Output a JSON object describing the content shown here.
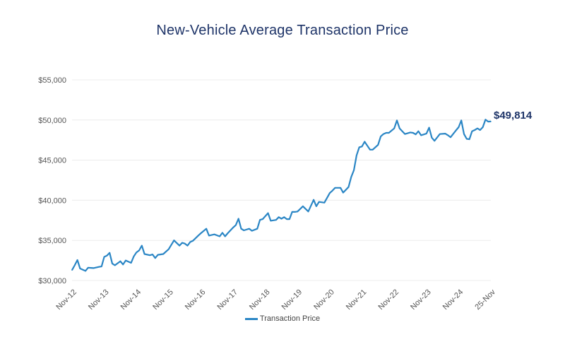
{
  "chart_data": {
    "type": "line",
    "title": "New-Vehicle Average Transaction Price",
    "xlabel": "",
    "ylabel": "",
    "ylim": [
      30000,
      55000
    ],
    "yticks": [
      "$30,000",
      "$35,000",
      "$40,000",
      "$45,000",
      "$50,000",
      "$55,000"
    ],
    "ytick_values": [
      30000,
      35000,
      40000,
      45000,
      50000,
      55000
    ],
    "xticks": [
      "Nov-12",
      "Nov-13",
      "Nov-14",
      "Nov-15",
      "Nov-16",
      "Nov-17",
      "Nov-18",
      "Nov-19",
      "Nov-20",
      "Nov-21",
      "Nov-22",
      "Nov-23",
      "Nov-24",
      "25-Nov"
    ],
    "xtick_dates": [
      "2012-11",
      "2013-11",
      "2014-11",
      "2015-11",
      "2016-11",
      "2017-11",
      "2018-11",
      "2019-11",
      "2020-11",
      "2021-11",
      "2022-11",
      "2023-11",
      "2024-11",
      "2025-11"
    ],
    "grid": "horizontal",
    "legend_position": "bottom",
    "color": "#2b86c5",
    "end_label": "$49,814",
    "series": [
      {
        "name": "Transaction Price",
        "x": [
          "2012-11",
          "2012-12",
          "2013-01",
          "2013-02",
          "2013-04",
          "2013-05",
          "2013-07",
          "2013-09",
          "2013-10",
          "2013-11",
          "2013-12",
          "2014-01",
          "2014-02",
          "2014-03",
          "2014-05",
          "2014-06",
          "2014-07",
          "2014-09",
          "2014-10",
          "2014-11",
          "2014-12",
          "2015-01",
          "2015-02",
          "2015-04",
          "2015-05",
          "2015-06",
          "2015-07",
          "2015-09",
          "2015-11",
          "2016-01",
          "2016-03",
          "2016-04",
          "2016-05",
          "2016-06",
          "2016-07",
          "2016-08",
          "2016-10",
          "2016-11",
          "2017-01",
          "2017-02",
          "2017-04",
          "2017-06",
          "2017-07",
          "2017-08",
          "2017-09",
          "2017-11",
          "2017-12",
          "2018-01",
          "2018-02",
          "2018-03",
          "2018-05",
          "2018-06",
          "2018-08",
          "2018-09",
          "2018-10",
          "2018-12",
          "2019-01",
          "2019-03",
          "2019-04",
          "2019-05",
          "2019-06",
          "2019-07",
          "2019-08",
          "2019-09",
          "2019-10",
          "2019-11",
          "2020-01",
          "2020-03",
          "2020-05",
          "2020-06",
          "2020-07",
          "2020-09",
          "2020-11",
          "2020-12",
          "2021-01",
          "2021-03",
          "2021-04",
          "2021-06",
          "2021-07",
          "2021-08",
          "2021-09",
          "2021-10",
          "2021-11",
          "2021-12",
          "2022-01",
          "2022-02",
          "2022-03",
          "2022-05",
          "2022-06",
          "2022-07",
          "2022-08",
          "2022-09",
          "2022-11",
          "2022-12",
          "2023-01",
          "2023-03",
          "2023-05",
          "2023-06",
          "2023-07",
          "2023-08",
          "2023-09",
          "2023-11",
          "2023-12",
          "2024-01",
          "2024-02",
          "2024-04",
          "2024-06",
          "2024-07",
          "2024-08",
          "2024-10",
          "2024-11",
          "2024-12",
          "2025-01",
          "2025-02",
          "2025-03",
          "2025-04",
          "2025-05",
          "2025-06",
          "2025-07",
          "2025-08",
          "2025-09",
          "2025-10",
          "2025-11"
        ],
        "values": [
          31300,
          31900,
          32550,
          31500,
          31200,
          31600,
          31550,
          31700,
          31750,
          32950,
          33100,
          33450,
          32100,
          31900,
          32400,
          32000,
          32500,
          32200,
          33000,
          33500,
          33750,
          34350,
          33300,
          33150,
          33250,
          32800,
          33200,
          33300,
          33900,
          35000,
          34350,
          34700,
          34600,
          34350,
          34800,
          34950,
          35600,
          35900,
          36450,
          35600,
          35750,
          35500,
          35950,
          35500,
          35900,
          36600,
          36900,
          37700,
          36450,
          36250,
          36450,
          36200,
          36450,
          37550,
          37650,
          38400,
          37450,
          37550,
          37900,
          37700,
          37900,
          37650,
          37650,
          38550,
          38550,
          38600,
          39250,
          38600,
          40050,
          39250,
          39800,
          39700,
          40900,
          41200,
          41550,
          41550,
          40950,
          41650,
          42900,
          43750,
          45600,
          46600,
          46700,
          47300,
          46800,
          46300,
          46300,
          46900,
          47950,
          48250,
          48400,
          48400,
          48950,
          49950,
          48950,
          48250,
          48450,
          48400,
          48200,
          48600,
          48100,
          48300,
          49050,
          47800,
          47400,
          48250,
          48300,
          48100,
          47850,
          48700,
          49100,
          49950,
          48250,
          47650,
          47600,
          48600,
          48750,
          48950,
          48750,
          49100,
          50050,
          49800,
          49814
        ]
      }
    ]
  }
}
